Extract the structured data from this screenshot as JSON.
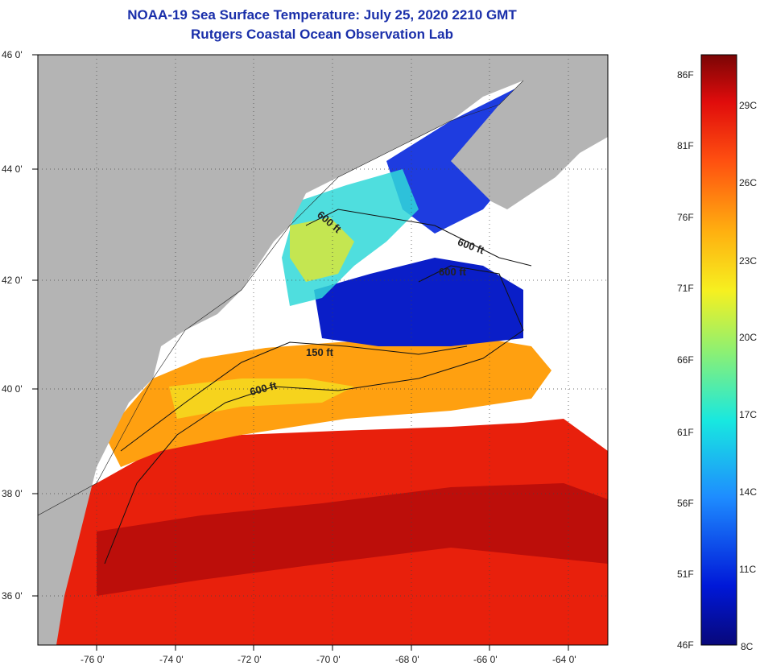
{
  "header": {
    "title": "NOAA-19 Sea Surface Temperature:  July 25, 2020 2210 GMT",
    "subtitle": "Rutgers Coastal Ocean Observation Lab"
  },
  "map": {
    "lat_labels": [
      "46 0'",
      "44 0'",
      "42 0'",
      "40 0'",
      "38 0'",
      "36 0'"
    ],
    "lon_labels": [
      "-76 0'",
      "-74 0'",
      "-72 0'",
      "-70 0'",
      "-68 0'",
      "-66 0'",
      "-64 0'"
    ],
    "contour_labels": [
      "600 ft",
      "600 ft",
      "600 ft",
      "150 ft",
      "600 ft"
    ],
    "colors": {
      "land": "#b4b4b4",
      "cloud": "#ffffff",
      "warm": "#e8200c",
      "hot": "#b00a0a",
      "mid": "#ffa010",
      "cool": "#0a1ec8"
    }
  },
  "colorbar": {
    "fahrenheit": [
      "86F",
      "81F",
      "76F",
      "71F",
      "66F",
      "61F",
      "56F",
      "51F",
      "46F"
    ],
    "celsius": [
      "29C",
      "26C",
      "23C",
      "20C",
      "17C",
      "14C",
      "11C",
      "8C"
    ]
  }
}
